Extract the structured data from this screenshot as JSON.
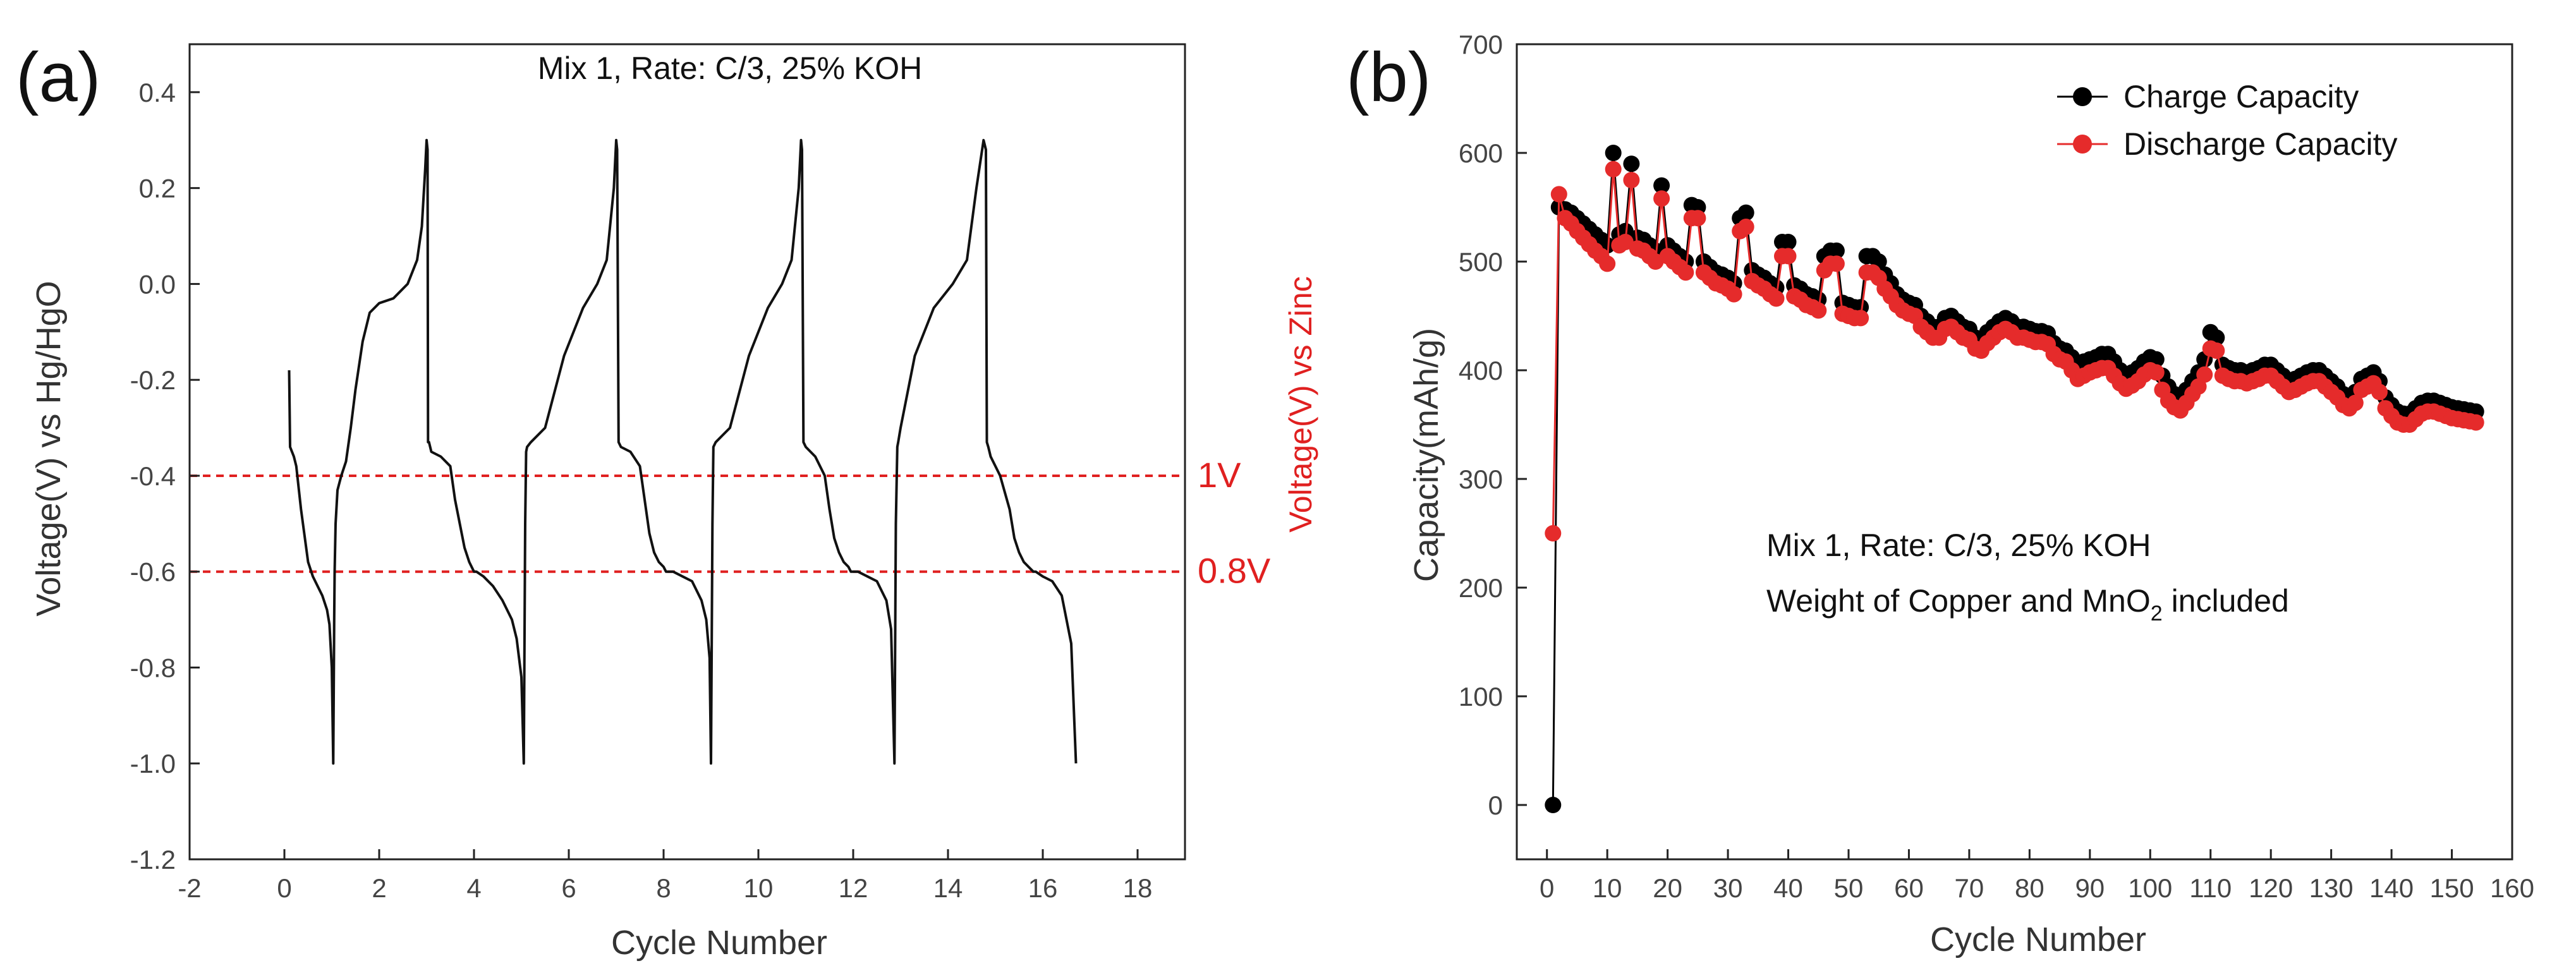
{
  "chart_data": [
    {
      "type": "line",
      "panel_label": "(a)",
      "title": "Mix 1, Rate: C/3, 25% KOH",
      "xlabel": "Cycle Number",
      "ylabel": "Voltage(V) vs Hg/HgO",
      "ylabel_right": "Voltage(V) vs Zinc",
      "xlim": [
        -2,
        19
      ],
      "ylim": [
        -1.2,
        0.5
      ],
      "xticks": [
        -2,
        0,
        2,
        4,
        6,
        8,
        10,
        12,
        14,
        16,
        18
      ],
      "yticks": [
        -1.2,
        -1.0,
        -0.8,
        -0.6,
        -0.4,
        -0.2,
        0.0,
        0.2,
        0.4
      ],
      "ytick_labels": [
        "-1.2",
        "-1.0",
        "-0.8",
        "-0.6",
        "-0.4",
        "-0.2",
        "0.0",
        "0.2",
        "0.4"
      ],
      "reference_lines": [
        {
          "y": -0.4,
          "label": "1V",
          "color": "#e02020"
        },
        {
          "y": -0.6,
          "label": "0.8V",
          "color": "#e02020"
        }
      ],
      "line_color": "#111111",
      "series": [
        {
          "name": "Voltage",
          "x": [
            0.1,
            0.12,
            0.2,
            0.25,
            0.35,
            0.5,
            0.6,
            0.7,
            0.8,
            0.9,
            0.95,
            1.0,
            1.03,
            1.05,
            1.06,
            1.08,
            1.12,
            1.2,
            1.3,
            1.4,
            1.5,
            1.65,
            1.8,
            2.0,
            2.3,
            2.6,
            2.8,
            2.9,
            2.97,
            3.0,
            3.02,
            3.03,
            3.05,
            3.1,
            3.3,
            3.5,
            3.6,
            3.7,
            3.8,
            3.9,
            4.0,
            4.05,
            4.2,
            4.4,
            4.6,
            4.8,
            4.9,
            5.0,
            5.05,
            5.08,
            5.1,
            5.12,
            5.2,
            5.5,
            5.9,
            6.3,
            6.6,
            6.8,
            6.95,
            7.0,
            7.02,
            7.05,
            7.1,
            7.3,
            7.5,
            7.6,
            7.7,
            7.8,
            7.9,
            8.0,
            8.05,
            8.2,
            8.4,
            8.6,
            8.8,
            8.9,
            8.97,
            9.0,
            9.03,
            9.05,
            9.1,
            9.4,
            9.8,
            10.2,
            10.5,
            10.7,
            10.85,
            10.9,
            10.92,
            10.95,
            11.0,
            11.2,
            11.4,
            11.5,
            11.6,
            11.7,
            11.8,
            11.9,
            11.95,
            12.1,
            12.3,
            12.5,
            12.7,
            12.8,
            12.87,
            12.9,
            12.93,
            12.95,
            13.0,
            13.3,
            13.7,
            14.1,
            14.4,
            14.6,
            14.75,
            14.8,
            14.82,
            14.85,
            14.9,
            15.1,
            15.3,
            15.4,
            15.5,
            15.6,
            15.7,
            15.8,
            15.85,
            16.0,
            16.2,
            16.4,
            16.6,
            16.7
          ],
          "y": [
            -0.18,
            -0.34,
            -0.36,
            -0.38,
            -0.47,
            -0.58,
            -0.61,
            -0.63,
            -0.65,
            -0.68,
            -0.71,
            -0.8,
            -1.0,
            -0.7,
            -0.6,
            -0.5,
            -0.43,
            -0.4,
            -0.37,
            -0.3,
            -0.22,
            -0.12,
            -0.06,
            -0.04,
            -0.03,
            0.0,
            0.05,
            0.12,
            0.24,
            0.3,
            0.28,
            -0.33,
            -0.33,
            -0.35,
            -0.36,
            -0.38,
            -0.45,
            -0.5,
            -0.55,
            -0.58,
            -0.6,
            -0.6,
            -0.61,
            -0.63,
            -0.66,
            -0.7,
            -0.74,
            -0.82,
            -1.0,
            -0.5,
            -0.35,
            -0.34,
            -0.33,
            -0.3,
            -0.15,
            -0.05,
            0.0,
            0.05,
            0.2,
            0.3,
            0.28,
            -0.33,
            -0.34,
            -0.35,
            -0.38,
            -0.45,
            -0.52,
            -0.56,
            -0.58,
            -0.59,
            -0.6,
            -0.6,
            -0.61,
            -0.62,
            -0.66,
            -0.7,
            -0.78,
            -1.0,
            -0.5,
            -0.34,
            -0.33,
            -0.3,
            -0.15,
            -0.05,
            0.0,
            0.05,
            0.2,
            0.3,
            0.28,
            -0.33,
            -0.34,
            -0.36,
            -0.4,
            -0.47,
            -0.53,
            -0.56,
            -0.58,
            -0.59,
            -0.6,
            -0.6,
            -0.61,
            -0.62,
            -0.66,
            -0.72,
            -1.0,
            -0.5,
            -0.34,
            -0.33,
            -0.3,
            -0.15,
            -0.05,
            0.0,
            0.05,
            0.2,
            0.3,
            0.28,
            -0.33,
            -0.34,
            -0.36,
            -0.4,
            -0.47,
            -0.53,
            -0.56,
            -0.58,
            -0.59,
            -0.6,
            -0.6,
            -0.61,
            -0.62,
            -0.65,
            -0.75,
            -1.0
          ]
        }
      ]
    },
    {
      "type": "line",
      "panel_label": "(b)",
      "xlabel": "Cycle Number",
      "ylabel": "Capacity(mAh/g)",
      "xlim": [
        -5,
        160
      ],
      "ylim": [
        -50,
        700
      ],
      "xticks": [
        0,
        10,
        20,
        30,
        40,
        50,
        60,
        70,
        80,
        90,
        100,
        110,
        120,
        130,
        140,
        150,
        160
      ],
      "yticks": [
        0,
        100,
        200,
        300,
        400,
        500,
        600,
        700
      ],
      "annotation": {
        "line1": "Mix 1, Rate: C/3, 25% KOH",
        "line2_prefix": "Weight of Copper and MnO",
        "line2_sub": "2",
        "line2_suffix": " included"
      },
      "legend_position": "top-right",
      "series": [
        {
          "name": "Charge Capacity",
          "color": "#000000",
          "x": [
            1,
            2,
            3,
            4,
            5,
            6,
            7,
            8,
            9,
            10,
            11,
            12,
            13,
            14,
            15,
            16,
            17,
            18,
            19,
            20,
            21,
            22,
            23,
            24,
            25,
            26,
            27,
            28,
            29,
            30,
            31,
            32,
            33,
            34,
            35,
            36,
            37,
            38,
            39,
            40,
            41,
            42,
            43,
            44,
            45,
            46,
            47,
            48,
            49,
            50,
            51,
            52,
            53,
            54,
            55,
            56,
            57,
            58,
            59,
            60,
            61,
            62,
            63,
            64,
            65,
            66,
            67,
            68,
            69,
            70,
            71,
            72,
            73,
            74,
            75,
            76,
            77,
            78,
            79,
            80,
            81,
            82,
            83,
            84,
            85,
            86,
            87,
            88,
            89,
            90,
            91,
            92,
            93,
            94,
            95,
            96,
            97,
            98,
            99,
            100,
            101,
            102,
            103,
            104,
            105,
            106,
            107,
            108,
            109,
            110,
            111,
            112,
            113,
            114,
            115,
            116,
            117,
            118,
            119,
            120,
            121,
            122,
            123,
            124,
            125,
            126,
            127,
            128,
            129,
            130,
            131,
            132,
            133,
            134,
            135,
            136,
            137,
            138,
            139,
            140,
            141,
            142,
            143,
            144,
            145,
            146,
            147,
            148,
            149,
            150,
            151,
            152,
            153,
            154
          ],
          "y": [
            0,
            550,
            548,
            545,
            540,
            535,
            530,
            525,
            520,
            515,
            600,
            525,
            528,
            590,
            522,
            520,
            515,
            510,
            570,
            515,
            510,
            505,
            500,
            552,
            550,
            500,
            495,
            490,
            488,
            485,
            480,
            540,
            545,
            492,
            488,
            485,
            480,
            476,
            518,
            518,
            478,
            475,
            470,
            468,
            465,
            505,
            510,
            510,
            462,
            460,
            458,
            458,
            505,
            505,
            500,
            488,
            480,
            470,
            465,
            462,
            460,
            450,
            445,
            440,
            440,
            448,
            450,
            445,
            440,
            438,
            430,
            428,
            435,
            440,
            445,
            448,
            445,
            440,
            440,
            438,
            436,
            436,
            434,
            425,
            420,
            418,
            412,
            405,
            408,
            410,
            412,
            415,
            415,
            408,
            400,
            395,
            398,
            402,
            408,
            412,
            410,
            395,
            385,
            378,
            375,
            382,
            390,
            398,
            410,
            435,
            430,
            405,
            402,
            400,
            400,
            398,
            400,
            402,
            405,
            405,
            400,
            395,
            390,
            392,
            395,
            398,
            400,
            400,
            395,
            390,
            385,
            378,
            375,
            380,
            392,
            395,
            398,
            390,
            375,
            368,
            362,
            360,
            360,
            365,
            370,
            372,
            372,
            370,
            368,
            366,
            365,
            364,
            363,
            362
          ]
        },
        {
          "name": "Discharge Capacity",
          "color": "#e52b2b",
          "x": [
            1,
            2,
            3,
            4,
            5,
            6,
            7,
            8,
            9,
            10,
            11,
            12,
            13,
            14,
            15,
            16,
            17,
            18,
            19,
            20,
            21,
            22,
            23,
            24,
            25,
            26,
            27,
            28,
            29,
            30,
            31,
            32,
            33,
            34,
            35,
            36,
            37,
            38,
            39,
            40,
            41,
            42,
            43,
            44,
            45,
            46,
            47,
            48,
            49,
            50,
            51,
            52,
            53,
            54,
            55,
            56,
            57,
            58,
            59,
            60,
            61,
            62,
            63,
            64,
            65,
            66,
            67,
            68,
            69,
            70,
            71,
            72,
            73,
            74,
            75,
            76,
            77,
            78,
            79,
            80,
            81,
            82,
            83,
            84,
            85,
            86,
            87,
            88,
            89,
            90,
            91,
            92,
            93,
            94,
            95,
            96,
            97,
            98,
            99,
            100,
            101,
            102,
            103,
            104,
            105,
            106,
            107,
            108,
            109,
            110,
            111,
            112,
            113,
            114,
            115,
            116,
            117,
            118,
            119,
            120,
            121,
            122,
            123,
            124,
            125,
            126,
            127,
            128,
            129,
            130,
            131,
            132,
            133,
            134,
            135,
            136,
            137,
            138,
            139,
            140,
            141,
            142,
            143,
            144,
            145,
            146,
            147,
            148,
            149,
            150,
            151,
            152,
            153,
            154
          ],
          "y": [
            250,
            562,
            540,
            535,
            528,
            522,
            516,
            510,
            505,
            498,
            585,
            515,
            518,
            575,
            512,
            510,
            505,
            500,
            558,
            505,
            500,
            495,
            490,
            540,
            540,
            490,
            485,
            480,
            478,
            475,
            470,
            528,
            532,
            482,
            478,
            475,
            470,
            466,
            505,
            505,
            468,
            465,
            460,
            458,
            455,
            492,
            498,
            498,
            452,
            450,
            448,
            448,
            490,
            490,
            485,
            475,
            468,
            460,
            455,
            452,
            450,
            440,
            435,
            430,
            430,
            438,
            440,
            435,
            430,
            428,
            420,
            418,
            425,
            430,
            435,
            438,
            435,
            430,
            430,
            428,
            426,
            426,
            424,
            415,
            410,
            408,
            400,
            392,
            395,
            398,
            400,
            402,
            402,
            395,
            388,
            383,
            386,
            390,
            396,
            400,
            398,
            382,
            372,
            366,
            363,
            370,
            378,
            385,
            396,
            420,
            418,
            395,
            392,
            390,
            390,
            388,
            390,
            392,
            395,
            395,
            390,
            385,
            380,
            382,
            385,
            388,
            390,
            390,
            385,
            380,
            375,
            368,
            365,
            370,
            382,
            385,
            388,
            380,
            365,
            358,
            352,
            350,
            350,
            355,
            360,
            362,
            362,
            360,
            358,
            356,
            355,
            354,
            353,
            352
          ]
        }
      ]
    }
  ]
}
